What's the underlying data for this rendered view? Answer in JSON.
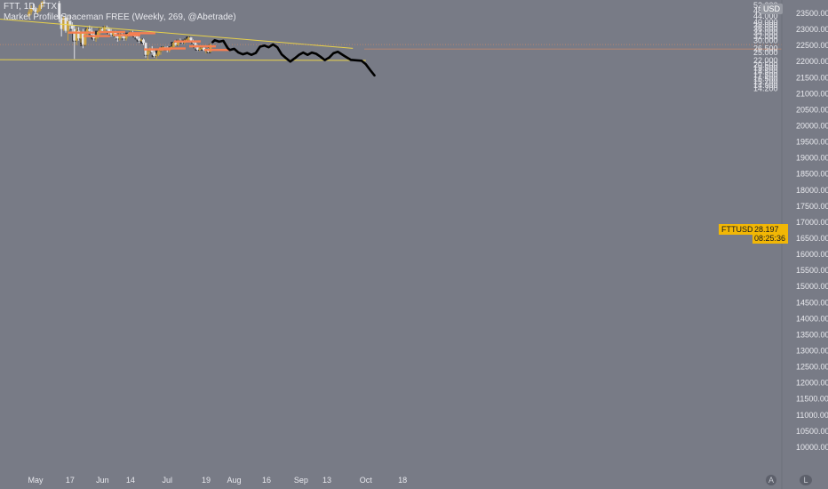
{
  "header": {
    "symbol_line": "FTT, 1D, FTX",
    "indicator_line": "Market Profile Spaceman FREE (Weekly, 269, @Abetrade)"
  },
  "currency_badge": "USD",
  "price_tag": {
    "symbol": "FTTUSD",
    "price": "28.197",
    "countdown": "08:25:36"
  },
  "colors": {
    "background": "#787b86",
    "axis_text": "#e8e9ee",
    "trendline": "#e9d24a",
    "price_tag_bg": "#f2b705",
    "candle_up": "#c9a243",
    "candle_down": "#e4e5e9",
    "poc": "#f57f52",
    "profile": "#2d2f35",
    "projection": "#000000"
  },
  "chart_data": {
    "type": "candlestick",
    "y_left_ticks": [
      "52.000",
      "48.000",
      "44.000",
      "40.000",
      "38.000",
      "36.000",
      "34.000",
      "32.000",
      "30.000",
      "26.500",
      "25.000",
      "22.000",
      "20.500",
      "19.500",
      "18.500",
      "17.500",
      "16.500",
      "15.700",
      "14.900",
      "14.200"
    ],
    "y_right_ticks": [
      "23500.00",
      "23000.00",
      "22500.00",
      "22000.00",
      "21500.00",
      "21000.00",
      "20500.00",
      "20000.00",
      "19500.00",
      "19000.00",
      "18500.00",
      "18000.00",
      "17500.00",
      "17000.00",
      "16500.00",
      "16000.00",
      "15500.00",
      "15000.00",
      "14500.00",
      "14000.00",
      "13500.00",
      "13000.00",
      "12500.00",
      "12000.00",
      "11500.00",
      "11000.00",
      "10500.00",
      "10000.00"
    ],
    "x_ticks": [
      "May",
      "17",
      "Jun",
      "14",
      "Jul",
      "19",
      "Aug",
      "16",
      "Sep",
      "13",
      "Oct",
      "18"
    ],
    "last_price": 28.197,
    "trendlines": [
      {
        "name": "descending",
        "from": [
          "2021-04-28",
          42.0
        ],
        "to": [
          "2021-09-25",
          26.6
        ]
      },
      {
        "name": "support",
        "from": [
          "2021-04-28",
          22.25
        ],
        "to": [
          "2021-10-01",
          22.0
        ]
      }
    ],
    "candles": [
      [
        "2021-04-28",
        44,
        49,
        43,
        47
      ],
      [
        "2021-04-29",
        47,
        52,
        45,
        50
      ],
      [
        "2021-04-30",
        50,
        54,
        48,
        49
      ],
      [
        "2021-05-01",
        49,
        51,
        46,
        47
      ],
      [
        "2021-05-02",
        47,
        50,
        45,
        48
      ],
      [
        "2021-05-03",
        48,
        53,
        47,
        52
      ],
      [
        "2021-05-04",
        52,
        56,
        50,
        55
      ],
      [
        "2021-05-05",
        55,
        58,
        53,
        54
      ],
      [
        "2021-05-12",
        54,
        56,
        40,
        42
      ],
      [
        "2021-05-13",
        42,
        45,
        32,
        36
      ],
      [
        "2021-05-14",
        36,
        44,
        35,
        43
      ],
      [
        "2021-05-15",
        43,
        45,
        34,
        35
      ],
      [
        "2021-05-16",
        35,
        44,
        30,
        41
      ],
      [
        "2021-05-17",
        41,
        45,
        36,
        38
      ],
      [
        "2021-05-18",
        38,
        40,
        34,
        36
      ],
      [
        "2021-05-19",
        36,
        38,
        22.5,
        30
      ],
      [
        "2021-05-20",
        30,
        37,
        28,
        35
      ],
      [
        "2021-05-21",
        35,
        37,
        30,
        31
      ],
      [
        "2021-05-22",
        31,
        35,
        29,
        34
      ],
      [
        "2021-05-23",
        34,
        36,
        26.6,
        28
      ],
      [
        "2021-05-24",
        28,
        35,
        27.5,
        34
      ],
      [
        "2021-05-25",
        34,
        37,
        32,
        36
      ],
      [
        "2021-05-26",
        36,
        38,
        34,
        35
      ],
      [
        "2021-05-27",
        35,
        37,
        32,
        33
      ],
      [
        "2021-05-28",
        33,
        34,
        30,
        31
      ],
      [
        "2021-05-29",
        31,
        33,
        29.5,
        32
      ],
      [
        "2021-05-30",
        32,
        35,
        31,
        34.5
      ],
      [
        "2021-05-31",
        34.5,
        37,
        33,
        36
      ],
      [
        "2021-06-01",
        36,
        37,
        34,
        35
      ],
      [
        "2021-06-02",
        35,
        38,
        34,
        37
      ],
      [
        "2021-06-03",
        37,
        38,
        35,
        36
      ],
      [
        "2021-06-04",
        36,
        37,
        33,
        34
      ],
      [
        "2021-06-05",
        34,
        36,
        32,
        33
      ],
      [
        "2021-06-06",
        33,
        35,
        32,
        34
      ],
      [
        "2021-06-07",
        34,
        35,
        31,
        32
      ],
      [
        "2021-06-08",
        32,
        33,
        29.5,
        31
      ],
      [
        "2021-06-09",
        31,
        34,
        30,
        33
      ],
      [
        "2021-06-10",
        33,
        34,
        31,
        32
      ],
      [
        "2021-06-11",
        32,
        33,
        30,
        31
      ],
      [
        "2021-06-12",
        31,
        33,
        30,
        32.5
      ],
      [
        "2021-06-13",
        32.5,
        34,
        32,
        33.5
      ],
      [
        "2021-06-14",
        33.5,
        35,
        32.5,
        34
      ],
      [
        "2021-06-15",
        34,
        35,
        33,
        33.5
      ],
      [
        "2021-06-16",
        33.5,
        34,
        31.5,
        32
      ],
      [
        "2021-06-17",
        32,
        33,
        30.5,
        31
      ],
      [
        "2021-06-18",
        31,
        32,
        29,
        30
      ],
      [
        "2021-06-19",
        30,
        31,
        29.5,
        30.5
      ],
      [
        "2021-06-20",
        30.5,
        31,
        28,
        29
      ],
      [
        "2021-06-21",
        29,
        29.5,
        23,
        24
      ],
      [
        "2021-06-22",
        24,
        26,
        22,
        25.5
      ],
      [
        "2021-06-23",
        25.5,
        27,
        24.5,
        26
      ],
      [
        "2021-06-24",
        26,
        27.5,
        24,
        25
      ],
      [
        "2021-06-25",
        25,
        26,
        23,
        23.5
      ],
      [
        "2021-06-26",
        23.5,
        24.5,
        22.5,
        24
      ],
      [
        "2021-06-27",
        24,
        26,
        23.5,
        25.5
      ],
      [
        "2021-06-28",
        25.5,
        27,
        24,
        26.5
      ],
      [
        "2021-06-29",
        26.5,
        27.5,
        25.5,
        27
      ],
      [
        "2021-06-30",
        27,
        27.5,
        26,
        26.2
      ],
      [
        "2021-07-01",
        26.2,
        27.5,
        25,
        25.8
      ],
      [
        "2021-07-02",
        25.8,
        27,
        25,
        26.8
      ],
      [
        "2021-07-03",
        26.8,
        27.5,
        26,
        27.2
      ],
      [
        "2021-07-04",
        27.2,
        29.5,
        27,
        29
      ],
      [
        "2021-07-05",
        29,
        29.5,
        27.5,
        28
      ],
      [
        "2021-07-06",
        28,
        30.5,
        27.5,
        30
      ],
      [
        "2021-07-07",
        30,
        31,
        29,
        29.5
      ],
      [
        "2021-07-08",
        29.5,
        30,
        28.5,
        29
      ],
      [
        "2021-07-09",
        29,
        30.5,
        28.5,
        30
      ],
      [
        "2021-07-10",
        30,
        31,
        29.5,
        30.5
      ],
      [
        "2021-07-11",
        30.5,
        32,
        30,
        31.5
      ],
      [
        "2021-07-12",
        31.5,
        32,
        29.5,
        30
      ],
      [
        "2021-07-13",
        30,
        30.5,
        28.5,
        29
      ],
      [
        "2021-07-14",
        29,
        29.5,
        26.5,
        27
      ],
      [
        "2021-07-15",
        27,
        28,
        25.5,
        26
      ],
      [
        "2021-07-16",
        26,
        27,
        25.5,
        26.5
      ],
      [
        "2021-07-17",
        26.5,
        27,
        26,
        26.8
      ],
      [
        "2021-07-18",
        26.8,
        27.2,
        25.5,
        25.8
      ],
      [
        "2021-07-19",
        25.8,
        26.5,
        24.5,
        26.2
      ],
      [
        "2021-07-20",
        26.2,
        26.6,
        24.8,
        25.2
      ],
      [
        "2021-07-21",
        25.2,
        28.5,
        25,
        28.2
      ]
    ],
    "profile_pocs": [
      [
        "2021-05-17",
        34.1
      ],
      [
        "2021-05-24",
        32.3
      ],
      [
        "2021-05-31",
        34.4
      ],
      [
        "2021-06-07",
        32.8
      ],
      [
        "2021-06-14",
        33.8
      ],
      [
        "2021-06-21",
        26.2
      ],
      [
        "2021-06-28",
        26.6
      ],
      [
        "2021-07-05",
        29.7
      ],
      [
        "2021-07-12",
        27.5
      ],
      [
        "2021-07-19",
        26.0
      ]
    ],
    "projection": [
      [
        "2021-07-22",
        29.3
      ],
      [
        "2021-07-23",
        30.2
      ],
      [
        "2021-07-25",
        29.5
      ],
      [
        "2021-07-27",
        29.9
      ],
      [
        "2021-07-29",
        26.7
      ],
      [
        "2021-07-30",
        25.9
      ],
      [
        "2021-08-01",
        26.4
      ],
      [
        "2021-08-03",
        24.9
      ],
      [
        "2021-08-05",
        24.2
      ],
      [
        "2021-08-07",
        24.7
      ],
      [
        "2021-08-09",
        24.0
      ],
      [
        "2021-08-11",
        24.7
      ],
      [
        "2021-08-13",
        27.3
      ],
      [
        "2021-08-15",
        27.8
      ],
      [
        "2021-08-17",
        27.0
      ],
      [
        "2021-08-19",
        28.3
      ],
      [
        "2021-08-21",
        27.0
      ],
      [
        "2021-08-23",
        24.2
      ],
      [
        "2021-08-25",
        22.8
      ],
      [
        "2021-08-27",
        21.6
      ],
      [
        "2021-08-29",
        22.7
      ],
      [
        "2021-08-31",
        24.0
      ],
      [
        "2021-09-02",
        24.9
      ],
      [
        "2021-09-04",
        24.0
      ],
      [
        "2021-09-06",
        24.9
      ],
      [
        "2021-09-08",
        24.4
      ],
      [
        "2021-09-10",
        23.3
      ],
      [
        "2021-09-12",
        22.1
      ],
      [
        "2021-09-14",
        23.0
      ],
      [
        "2021-09-16",
        24.6
      ],
      [
        "2021-09-18",
        25.2
      ],
      [
        "2021-09-21",
        23.6
      ],
      [
        "2021-09-24",
        22.2
      ],
      [
        "2021-09-27",
        22.0
      ],
      [
        "2021-09-29",
        21.9
      ],
      [
        "2021-10-01",
        20.7
      ],
      [
        "2021-10-03",
        18.9
      ],
      [
        "2021-10-05",
        17.4
      ]
    ]
  }
}
